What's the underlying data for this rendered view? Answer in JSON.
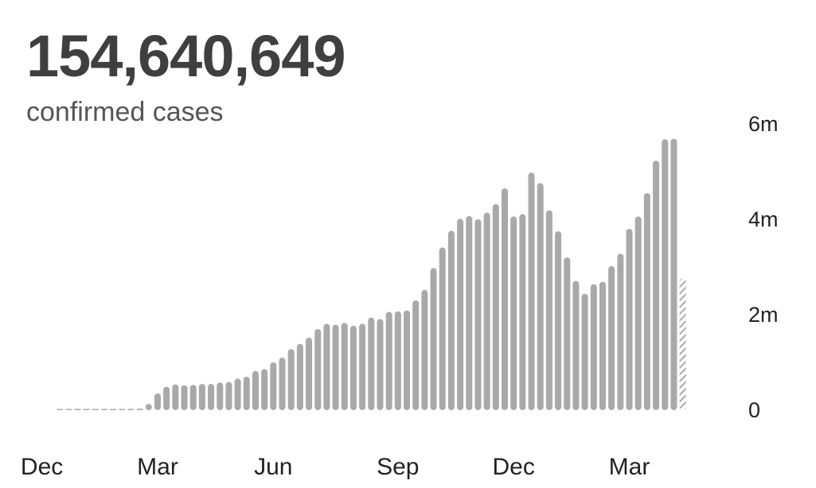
{
  "header": {
    "total": "154,640,649",
    "subtitle": "confirmed cases"
  },
  "colors": {
    "bar": "#a9a9a9",
    "partial_bar": "#a9a9a9"
  },
  "chart_data": {
    "type": "bar",
    "title": "",
    "xlabel": "",
    "ylabel": "",
    "ylim": [
      0,
      6000000
    ],
    "yticks": [
      {
        "value": 0,
        "label": "0"
      },
      {
        "value": 2000000,
        "label": "2m"
      },
      {
        "value": 4000000,
        "label": "4m"
      },
      {
        "value": 6000000,
        "label": "6m"
      }
    ],
    "xticks": [
      {
        "index": -2,
        "label": "Dec"
      },
      {
        "index": 11,
        "label": "Mar"
      },
      {
        "index": 24,
        "label": "Jun"
      },
      {
        "index": 38,
        "label": "Sep"
      },
      {
        "index": 51,
        "label": "Dec"
      },
      {
        "index": 64,
        "label": "Mar"
      }
    ],
    "grid": false,
    "series": [
      {
        "values": [
          2000,
          3000,
          4000,
          3000,
          5000,
          6000,
          6000,
          8000,
          10000,
          30000,
          130000,
          350000,
          490000,
          540000,
          520000,
          530000,
          550000,
          550000,
          580000,
          590000,
          660000,
          700000,
          820000,
          860000,
          1000000,
          1100000,
          1280000,
          1390000,
          1520000,
          1700000,
          1810000,
          1790000,
          1830000,
          1770000,
          1810000,
          1940000,
          1910000,
          2060000,
          2070000,
          2090000,
          2300000,
          2520000,
          2980000,
          3410000,
          3760000,
          4010000,
          4070000,
          4000000,
          4140000,
          4320000,
          4650000,
          4060000,
          4110000,
          4980000,
          4760000,
          4190000,
          3750000,
          3200000,
          2710000,
          2440000,
          2640000,
          2690000,
          3020000,
          3280000,
          3800000,
          4060000,
          4550000,
          5230000,
          5680000,
          5690000,
          2760000
        ],
        "last_partial": true
      }
    ]
  }
}
